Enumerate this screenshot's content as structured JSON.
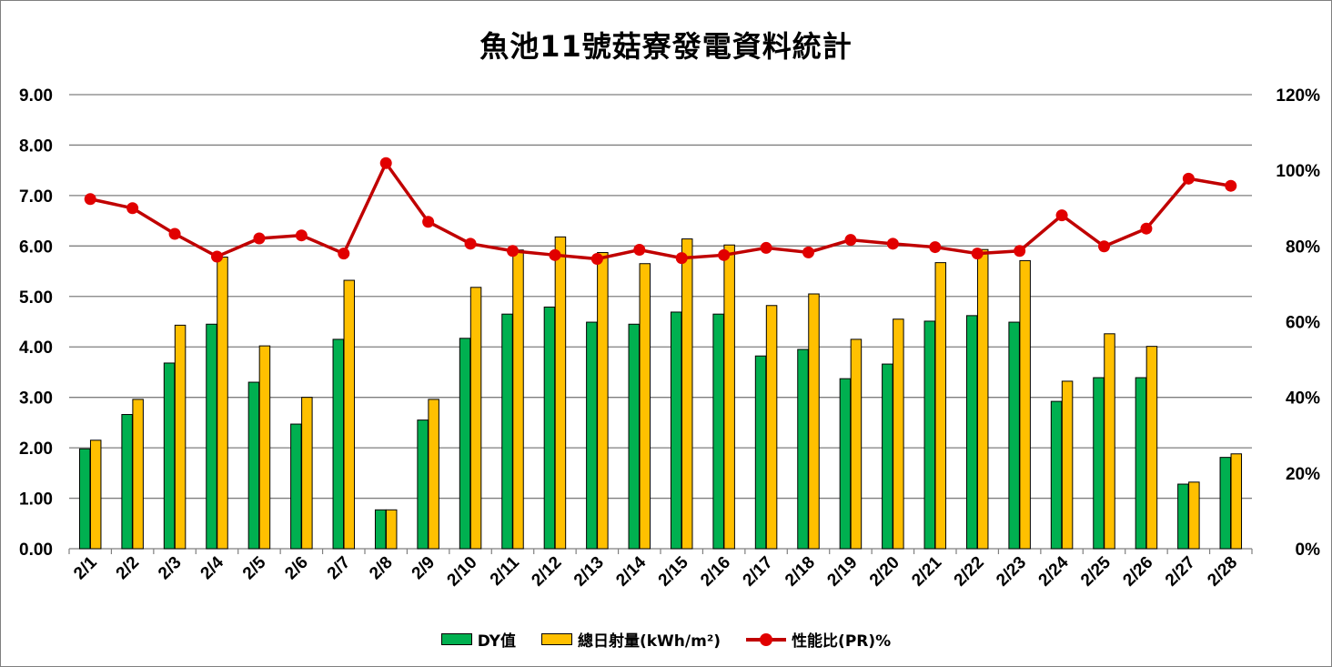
{
  "chart_data": {
    "type": "bar",
    "title": "魚池11號菇寮發電資料統計",
    "categories": [
      "2/1",
      "2/2",
      "2/3",
      "2/4",
      "2/5",
      "2/6",
      "2/7",
      "2/8",
      "2/9",
      "2/10",
      "2/11",
      "2/12",
      "2/13",
      "2/14",
      "2/15",
      "2/16",
      "2/17",
      "2/18",
      "2/19",
      "2/20",
      "2/21",
      "2/22",
      "2/23",
      "2/24",
      "2/25",
      "2/26",
      "2/27",
      "2/28"
    ],
    "series": [
      {
        "name": "DY值",
        "type": "bar",
        "axis": "left",
        "color": "#00b050",
        "values": [
          1.98,
          2.66,
          3.68,
          4.45,
          3.3,
          2.47,
          4.15,
          0.77,
          2.55,
          4.17,
          4.65,
          4.79,
          4.49,
          4.45,
          4.69,
          4.65,
          3.82,
          3.95,
          3.37,
          3.66,
          4.51,
          4.62,
          4.49,
          2.92,
          3.39,
          3.39,
          1.28,
          1.81
        ]
      },
      {
        "name": "總日射量(kWh/m²)",
        "type": "bar",
        "axis": "left",
        "color": "#ffc000",
        "values": [
          2.15,
          2.96,
          4.43,
          5.78,
          4.02,
          3.0,
          5.32,
          0.77,
          2.96,
          5.18,
          5.92,
          6.18,
          5.87,
          5.65,
          6.14,
          6.02,
          4.82,
          5.05,
          4.15,
          4.55,
          5.67,
          5.93,
          5.71,
          3.32,
          4.26,
          4.01,
          1.32,
          1.88
        ]
      },
      {
        "name": "性能比(PR)%",
        "type": "line",
        "axis": "right",
        "color": "#c00000",
        "values": [
          92.4,
          90.0,
          83.2,
          77.2,
          82.0,
          82.8,
          78.0,
          101.9,
          86.4,
          80.6,
          78.7,
          77.6,
          76.6,
          79.0,
          76.8,
          77.6,
          79.5,
          78.3,
          81.6,
          80.6,
          79.7,
          78.0,
          78.7,
          88.1,
          79.9,
          84.6,
          97.8,
          95.9
        ]
      }
    ],
    "left_axis": {
      "ylim": [
        0,
        9
      ],
      "ticks": [
        "0.00",
        "1.00",
        "2.00",
        "3.00",
        "4.00",
        "5.00",
        "6.00",
        "7.00",
        "8.00",
        "9.00"
      ]
    },
    "right_axis": {
      "ylim": [
        0,
        120
      ],
      "ticks": [
        "0%",
        "20%",
        "40%",
        "60%",
        "80%",
        "100%",
        "120%"
      ]
    },
    "grid": true,
    "legend_position": "bottom",
    "xlabel": "",
    "ylabel": ""
  }
}
